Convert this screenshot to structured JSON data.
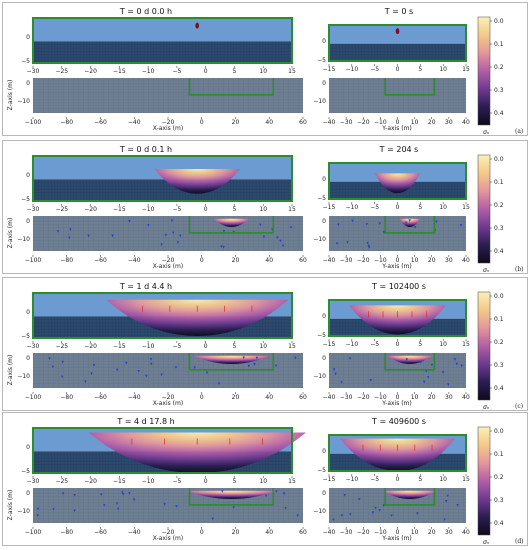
{
  "colors": {
    "water": "#6b9bd1",
    "sediment": "#2c4a6e",
    "mesh": "#1b3352",
    "coarse_ground": "#6e7f93",
    "frame": "#2e8b2e",
    "marker": "#1f3fdd",
    "arrow": "#d62a2a"
  },
  "colorbar": {
    "ticks": [
      "0.0",
      "0.1",
      "0.2",
      "0.3",
      "0.4"
    ],
    "label": "σₙ",
    "stops": [
      "#fbf0b8",
      "#f5c98a",
      "#e3969a",
      "#b25ea7",
      "#6f3a90",
      "#2b1d52",
      "#0d0a1a"
    ]
  },
  "axes": {
    "x_label": "X-axis (m)",
    "y_label": "Y-axis (m)",
    "z_label": "Z-axis (m)",
    "top_ticks_x": [
      "−30",
      "−25",
      "−20",
      "−15",
      "−10",
      "−5",
      "0",
      "5",
      "10",
      "15"
    ],
    "top_ticks_y": [
      "−15",
      "−10",
      "−5",
      "0",
      "5",
      "10",
      "15"
    ],
    "bottom_ticks_x": [
      "−100",
      "−80",
      "−60",
      "−40",
      "−20",
      "0",
      "20",
      "40",
      "60"
    ],
    "bottom_ticks_y": [
      "−40",
      "−30",
      "−20",
      "−10",
      "0",
      "10",
      "20",
      "30",
      "40"
    ],
    "z_top_ticks": [
      "0",
      "−5"
    ],
    "z_bottom_ticks_a": [
      "0",
      "−10"
    ],
    "z_bottom_ticks_b": [
      "0",
      "−10"
    ]
  },
  "panels": [
    {
      "label": "(a)",
      "left_title": "T = 0 d  0.0 h",
      "right_title": "T = 0 s",
      "crater": 0.0
    },
    {
      "label": "(b)",
      "left_title": "T = 0 d  0.1 h",
      "right_title": "T = 204 s",
      "crater": 0.25
    },
    {
      "label": "(c)",
      "left_title": "T = 1 d  4.4 h",
      "right_title": "T = 102400 s",
      "crater": 0.8
    },
    {
      "label": "(d)",
      "left_title": "T = 4 d 17.8 h",
      "right_title": "T = 409600 s",
      "crater": 1.0
    }
  ]
}
